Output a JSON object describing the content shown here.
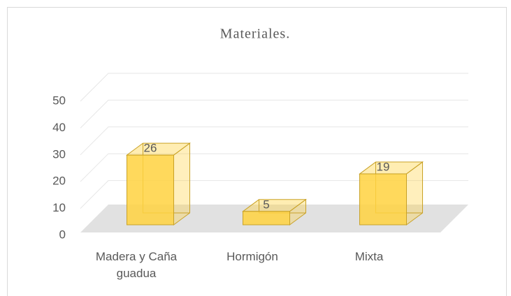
{
  "chart_data": {
    "type": "bar3d",
    "title": "Materiales.",
    "categories": [
      "Madera y Caña guadua",
      "Hormigón",
      "Mixta"
    ],
    "values": [
      26,
      5,
      19
    ],
    "color": "#ffd23f",
    "ylim": [
      0,
      50
    ],
    "yticks": [
      0,
      10,
      20,
      30,
      40,
      50
    ],
    "grid": true
  }
}
